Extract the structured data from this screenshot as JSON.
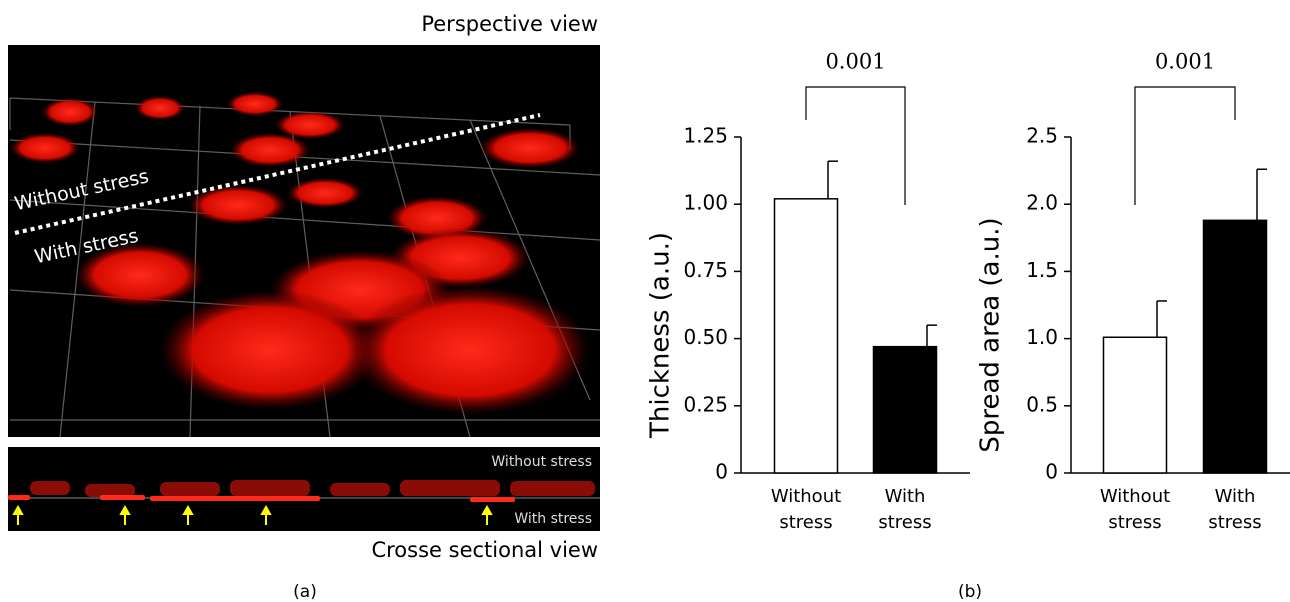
{
  "panel_a": {
    "perspective_title": "Perspective view",
    "perspective_labels": [
      "Without stress",
      "With stress"
    ],
    "section_labels": [
      "Without stress",
      "With stress"
    ],
    "section_title": "Crosse sectional view",
    "panel_label": "(a)"
  },
  "panel_b_label": "(b)",
  "chart_data": [
    {
      "type": "bar",
      "ylabel": "Thickness (a.u.)",
      "categories": [
        "Without stress",
        "With stress"
      ],
      "values": [
        1.02,
        0.47
      ],
      "errors": [
        0.14,
        0.08
      ],
      "colors": [
        "#ffffff",
        "#000000"
      ],
      "annotation": "0.001",
      "ylim": [
        0,
        1.25
      ],
      "yticks": [
        0,
        0.25,
        {
          "value": 0.5,
          "label": "0.50"
        },
        0.75,
        {
          "value": 1,
          "label": "1.00"
        },
        1.25
      ]
    },
    {
      "type": "bar",
      "ylabel": "Spread area (a.u.)",
      "categories": [
        "Without stress",
        "With stress"
      ],
      "values": [
        1.01,
        1.88
      ],
      "errors": [
        0.27,
        0.38
      ],
      "colors": [
        "#ffffff",
        "#000000"
      ],
      "annotation": "0.001",
      "ylim": [
        0,
        2.5
      ],
      "yticks": [
        0,
        0.5,
        {
          "value": 1,
          "label": "1.0"
        },
        1.5,
        {
          "value": 2,
          "label": "2.0"
        },
        2.5
      ]
    }
  ]
}
